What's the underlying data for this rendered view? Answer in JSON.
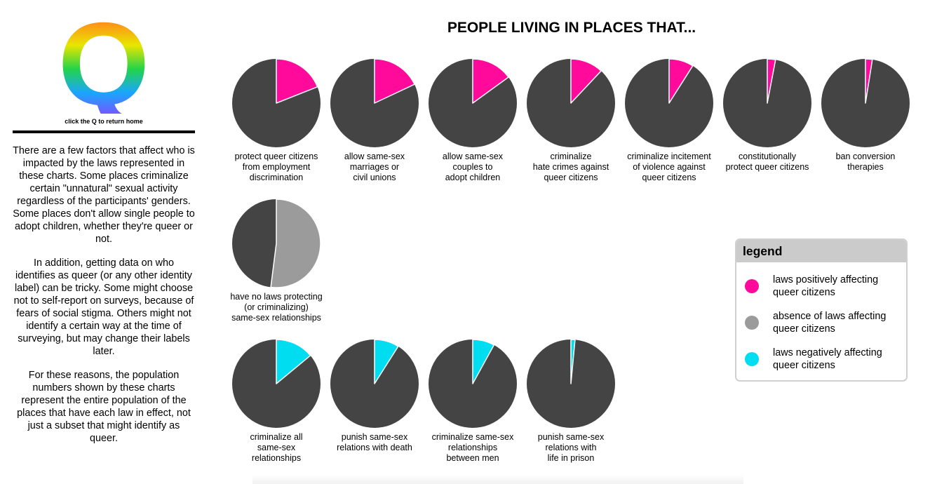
{
  "sidebar": {
    "logo_letter": "Q",
    "home_hint": "click the Q to return home",
    "paragraphs": [
      "There are a few factors that affect who is impacted by the laws represented in these charts. Some places criminalize certain \"unnatural\" sexual activity regardless of the participants' genders. Some places don't allow single people to adopt children, whether they're queer or not.",
      "In addition, getting data on who identifies as queer (or any other identity label) can be tricky. Some might choose not to self-report on surveys, because of fears of social stigma. Others might not identify a certain way at the time of surveying, but may change their labels later.",
      "For these reasons, the population numbers shown by these charts represent the entire population of the places that have each law in effect, not just a subset that might identify as queer."
    ]
  },
  "colors": {
    "positive": "#ff0a9b",
    "absence": "#9b9b9b",
    "negative": "#00dcf0",
    "rest": "#444444"
  },
  "chart_data": {
    "type": "pie",
    "title": "PEOPLE LIVING IN PLACES THAT...",
    "pies": [
      {
        "label": "protect queer citizens\nfrom employment\ndiscrimination",
        "category": "positive",
        "share": 0.19
      },
      {
        "label": "allow same-sex\nmarriages or\ncivil unions",
        "category": "positive",
        "share": 0.18
      },
      {
        "label": "allow same-sex\ncouples to\nadopt children",
        "category": "positive",
        "share": 0.15
      },
      {
        "label": "criminalize\nhate crimes against\nqueer citizens",
        "category": "positive",
        "share": 0.12
      },
      {
        "label": "criminalize incitement\nof violence against\nqueer citizens",
        "category": "positive",
        "share": 0.09
      },
      {
        "label": "constitutionally\nprotect queer citizens",
        "category": "positive",
        "share": 0.03
      },
      {
        "label": "ban conversion\ntherapies",
        "category": "positive",
        "share": 0.025
      },
      {
        "label": "have no laws protecting\n(or criminalizing)\nsame-sex relationships",
        "category": "absence",
        "share": 0.52
      },
      {
        "label": "criminalize all\nsame-sex\nrelationships",
        "category": "negative",
        "share": 0.14
      },
      {
        "label": "punish same-sex\nrelations with death",
        "category": "negative",
        "share": 0.09
      },
      {
        "label": "criminalize same-sex\nrelationships\nbetween men",
        "category": "negative",
        "share": 0.08
      },
      {
        "label": "punish same-sex\nrelations with\nlife in prison",
        "category": "negative",
        "share": 0.015
      }
    ]
  },
  "legend": {
    "title": "legend",
    "items": [
      {
        "label": "laws positively affecting\nqueer citizens",
        "color": "#ff0a9b"
      },
      {
        "label": "absence of laws affecting\nqueer citizens",
        "color": "#9b9b9b"
      },
      {
        "label": "laws negatively affecting\nqueer citizens",
        "color": "#00dcf0"
      }
    ]
  }
}
